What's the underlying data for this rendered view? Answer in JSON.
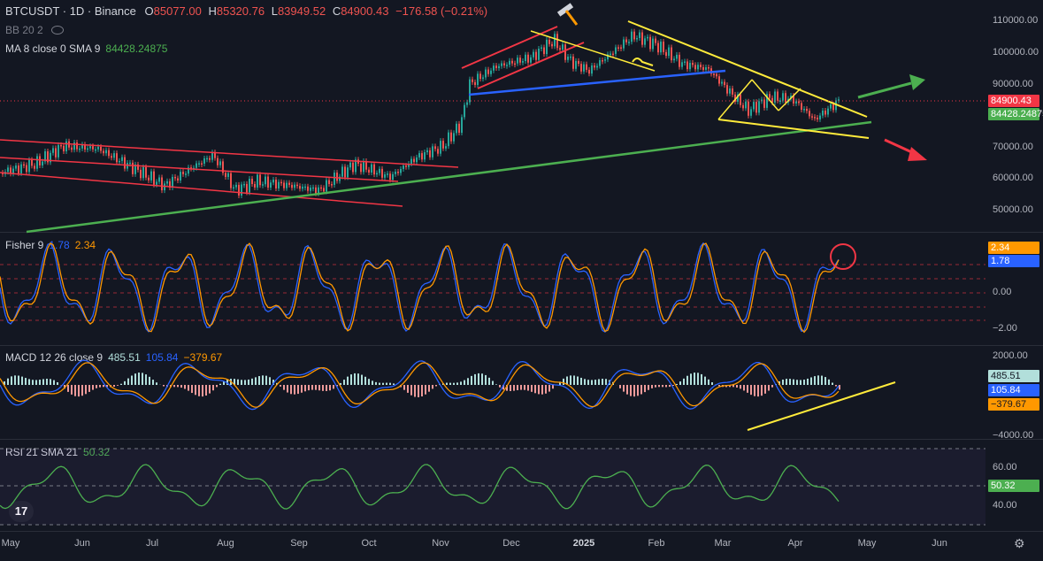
{
  "main": {
    "symbol": "BTCUSDT · 1D · Binance",
    "ohlc": {
      "o_label": "O",
      "o": "85077.00",
      "h_label": "H",
      "h": "85320.76",
      "l_label": "L",
      "l": "83949.52",
      "c_label": "C",
      "c": "84900.43",
      "chg": "−176.58 (−0.21%)"
    },
    "bb_label": "BB 20 2",
    "ma_label": "MA 8 close 0 SMA 9",
    "ma_value": "84428.24875",
    "y_ticks": [
      "110000.00",
      "100000.00",
      "90000.00",
      "70000.00",
      "60000.00",
      "50000.00"
    ],
    "price_badge": "84900.43",
    "ma_badge": "84428.24875"
  },
  "fisher": {
    "label": "Fisher 9",
    "v1": "1.78",
    "v2": "2.34",
    "y_ticks": [
      "0.00",
      "−2.00"
    ],
    "badge_top": "2.34",
    "badge_bottom": "1.78"
  },
  "macd": {
    "label": "MACD 12 26 close 9",
    "v1": "485.51",
    "v2": "105.84",
    "v3": "−379.67",
    "y_ticks": [
      "2000.00",
      "−4000.00"
    ],
    "badges": [
      "485.51",
      "105.84",
      "−379.67"
    ]
  },
  "rsi": {
    "label": "RSI 21 SMA 21",
    "value": "50.32",
    "y_ticks": [
      "60.00",
      "40.00"
    ],
    "badge": "50.32"
  },
  "x_axis": [
    {
      "label": "May"
    },
    {
      "label": "Jun"
    },
    {
      "label": "Jul"
    },
    {
      "label": "Aug"
    },
    {
      "label": "Sep"
    },
    {
      "label": "Oct"
    },
    {
      "label": "Nov"
    },
    {
      "label": "Dec"
    },
    {
      "label": "2025",
      "bold": true
    },
    {
      "label": "Feb"
    },
    {
      "label": "Mar"
    },
    {
      "label": "Apr"
    },
    {
      "label": "May"
    },
    {
      "label": "Jun"
    }
  ],
  "colors": {
    "up": "#26a69a",
    "down": "#ef5350",
    "fisher_blue": "#2962ff",
    "fisher_orange": "#ff9800",
    "macd_blue": "#2962ff",
    "macd_orange": "#ff9800",
    "rsi": "#4caf50",
    "ma": "#4caf50",
    "trend_yellow": "#ffeb3b",
    "trend_red": "#f23645",
    "trend_green": "#4caf50",
    "trend_blue": "#2962ff"
  },
  "icons": {
    "logo": "tradingview-logo",
    "settings": "gear-icon",
    "visibility": "eye-off-icon",
    "annotation": "hammer-icon"
  }
}
